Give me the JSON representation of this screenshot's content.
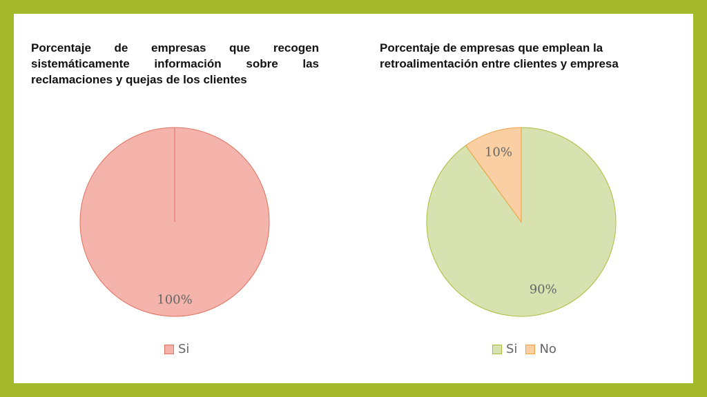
{
  "chart_data": [
    {
      "type": "pie",
      "title": "Porcentaje de empresas que recogen sistemáticamente información sobre las reclamaciones y quejas de los clientes",
      "categories": [
        "Si"
      ],
      "values": [
        100
      ],
      "labels": [
        "100%"
      ],
      "colors": [
        "#f4b4ac"
      ],
      "stroke_colors": [
        "#e0705f"
      ],
      "legend": "bottom"
    },
    {
      "type": "pie",
      "title": "Porcentaje de empresas que emplean la retroalimentación entre clientes y empresa",
      "categories": [
        "Si",
        "No"
      ],
      "values": [
        90,
        10
      ],
      "labels": [
        "90%",
        "10%"
      ],
      "colors": [
        "#d8e1b0",
        "#f9cfa3"
      ],
      "stroke_colors": [
        "#a8bf3a",
        "#f0a040"
      ],
      "legend": "bottom"
    }
  ]
}
